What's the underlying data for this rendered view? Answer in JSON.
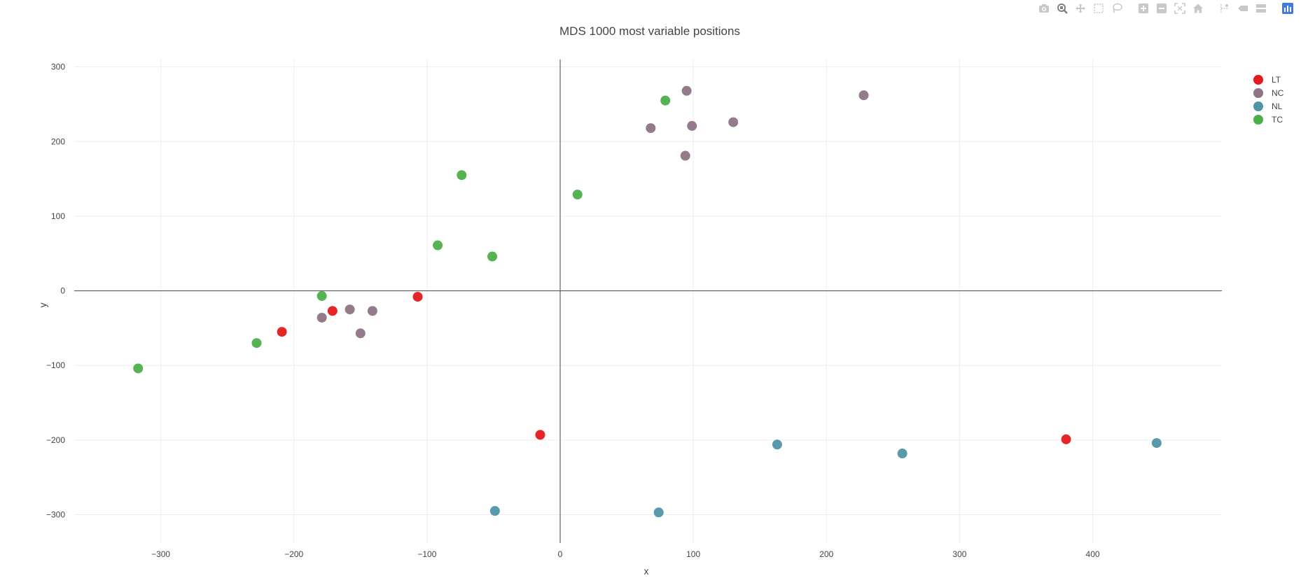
{
  "modebar": {
    "buttons": [
      {
        "name": "camera-icon",
        "label": "Download plot as a png"
      },
      {
        "name": "zoom-icon",
        "label": "Zoom"
      },
      {
        "name": "pan-icon",
        "label": "Pan"
      },
      {
        "name": "box-select-icon",
        "label": "Box Select"
      },
      {
        "name": "lasso-select-icon",
        "label": "Lasso Select"
      },
      {
        "name": "zoom-in-icon",
        "label": "Zoom in"
      },
      {
        "name": "zoom-out-icon",
        "label": "Zoom out"
      },
      {
        "name": "autoscale-icon",
        "label": "Autoscale"
      },
      {
        "name": "home-icon",
        "label": "Reset axes"
      },
      {
        "name": "spike-lines-icon",
        "label": "Toggle Spike Lines"
      },
      {
        "name": "hover-closest-icon",
        "label": "Show closest data on hover"
      },
      {
        "name": "hover-compare-icon",
        "label": "Compare data on hover"
      },
      {
        "name": "plotly-logo-icon",
        "label": "Produced with Plotly"
      }
    ],
    "active": "zoom-icon",
    "active_color": "#7f7f7f",
    "inactive_color": "#c8c8c8",
    "logo_color": "#447adb"
  },
  "chart_data": {
    "type": "scatter",
    "title": "MDS 1000 most variable positions",
    "xlabel": "x",
    "ylabel": "y",
    "xlim": [
      -365,
      497
    ],
    "ylim": [
      -338,
      310
    ],
    "xticks": [
      -300,
      -200,
      -100,
      0,
      100,
      200,
      300,
      400
    ],
    "xtick_labels": [
      "−300",
      "−200",
      "−100",
      "0",
      "100",
      "200",
      "300",
      "400"
    ],
    "yticks": [
      -300,
      -200,
      -100,
      0,
      100,
      200,
      300
    ],
    "ytick_labels": [
      "−300",
      "−200",
      "−100",
      "0",
      "100",
      "200",
      "300"
    ],
    "grid": true,
    "legend_position": "top-right",
    "series": [
      {
        "name": "LT",
        "color": "#e41a1c",
        "x": [
          -171,
          -209,
          -107,
          -15,
          380
        ],
        "y": [
          -27,
          -55,
          -8,
          -193,
          -199
        ]
      },
      {
        "name": "NC",
        "color": "#8e7486",
        "x": [
          95,
          68,
          99,
          94,
          130,
          228,
          -179,
          -158,
          -141,
          -150
        ],
        "y": [
          268,
          218,
          221,
          181,
          226,
          262,
          -36,
          -25,
          -27,
          -57
        ]
      },
      {
        "name": "NL",
        "color": "#4f95a6",
        "x": [
          163,
          257,
          448,
          -49,
          74
        ],
        "y": [
          -206,
          -218,
          -204,
          -295,
          -297
        ]
      },
      {
        "name": "TC",
        "color": "#4daf4a",
        "x": [
          79,
          -74,
          13,
          -92,
          -51,
          -179,
          -228,
          -317
        ],
        "y": [
          255,
          155,
          129,
          61,
          46,
          -7,
          -70,
          -104
        ]
      }
    ]
  }
}
